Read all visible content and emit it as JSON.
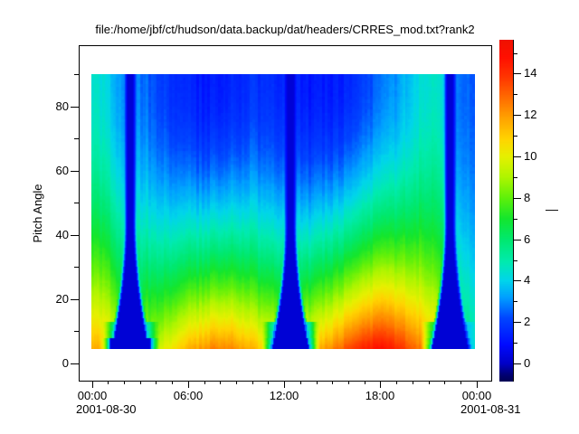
{
  "title": "file:/home/jbf/ct/hudson/data.backup/dat/headers/CRRES_mod.txt?rank2",
  "y_axis": {
    "label": "Pitch Angle",
    "major_ticks": [
      {
        "label": "0",
        "value": 0
      },
      {
        "label": "20",
        "value": 20
      },
      {
        "label": "40",
        "value": 40
      },
      {
        "label": "60",
        "value": 60
      },
      {
        "label": "80",
        "value": 80
      }
    ],
    "minor_tick_values": [
      10,
      30,
      50,
      70,
      90
    ]
  },
  "x_axis": {
    "major_ticks": [
      {
        "label": "00:00",
        "hour": 0
      },
      {
        "label": "06:00",
        "hour": 6
      },
      {
        "label": "12:00",
        "hour": 12
      },
      {
        "label": "18:00",
        "hour": 18
      },
      {
        "label": "00:00",
        "hour": 24
      }
    ],
    "minor_tick_hours": [
      1,
      2,
      3,
      4,
      5,
      7,
      8,
      9,
      10,
      11,
      13,
      14,
      15,
      16,
      17,
      19,
      20,
      21,
      22,
      23
    ],
    "date_start": "2001-08-30",
    "date_end": "2001-08-31"
  },
  "colorbar": {
    "label": "—",
    "major_ticks": [
      {
        "label": "0",
        "value": 0
      },
      {
        "label": "2",
        "value": 2
      },
      {
        "label": "4",
        "value": 4
      },
      {
        "label": "6",
        "value": 6
      },
      {
        "label": "8",
        "value": 8
      },
      {
        "label": "10",
        "value": 10
      },
      {
        "label": "12",
        "value": 12
      },
      {
        "label": "14",
        "value": 14
      }
    ],
    "minor_tick_values": [
      1,
      3,
      5,
      7,
      9,
      11,
      13,
      15
    ]
  },
  "chart_data": {
    "type": "heatmap",
    "title": "file:/home/jbf/ct/hudson/data.backup/dat/headers/CRRES_mod.txt?rank2",
    "x": {
      "start": "2001-08-30 00:00",
      "end": "2001-08-31 00:00",
      "hours_range": [
        0,
        24
      ],
      "tick_labels": [
        "00:00",
        "06:00",
        "12:00",
        "18:00",
        "00:00"
      ]
    },
    "y": {
      "label": "Pitch Angle",
      "data_range_deg": [
        4.5,
        90
      ],
      "axis_range_deg": [
        -5.5,
        104
      ]
    },
    "z": {
      "tick_values": [
        0,
        2,
        4,
        6,
        8,
        10,
        12,
        14
      ],
      "colorbar_range": [
        -0.9,
        15.6
      ],
      "colormap": "rainbow-jet"
    },
    "grid": false,
    "dropout_funnels": {
      "center_hours": [
        2.4,
        12.4,
        22.35
      ],
      "half_width_top_hours": 0.29,
      "half_width_bottom_hours": [
        1.35,
        1.15,
        1.15
      ],
      "trumpet_start_pitch_deg": 45,
      "inside_value": 0.22
    },
    "bottom_intensity_profile": [
      [
        0,
        11.8
      ],
      [
        1,
        11.0
      ],
      [
        1.9,
        9.4
      ],
      [
        3,
        9.2
      ],
      [
        4.5,
        9.8
      ],
      [
        5.5,
        10.8
      ],
      [
        6.5,
        11.7
      ],
      [
        7.5,
        12.2
      ],
      [
        8.5,
        12.2
      ],
      [
        9.5,
        11.8
      ],
      [
        10.5,
        11.0
      ],
      [
        11.5,
        10.5
      ],
      [
        12.4,
        10.4
      ],
      [
        13.3,
        10.8
      ],
      [
        14,
        11.2
      ],
      [
        15,
        12.2
      ],
      [
        16,
        13.4
      ],
      [
        17,
        14.2
      ],
      [
        18,
        14.6
      ],
      [
        19,
        14.2
      ],
      [
        20,
        13.2
      ],
      [
        21,
        11.8
      ],
      [
        21.9,
        10.2
      ],
      [
        22.7,
        7.2
      ],
      [
        23.3,
        6.0
      ],
      [
        24,
        5.4
      ]
    ],
    "top_intensity_profile": [
      [
        0,
        4.7
      ],
      [
        0.8,
        4.1
      ],
      [
        1.6,
        3.3
      ],
      [
        2.4,
        3.0
      ],
      [
        3,
        2.8
      ],
      [
        4,
        2.2
      ],
      [
        5,
        1.7
      ],
      [
        6,
        1.4
      ],
      [
        7,
        1.2
      ],
      [
        8,
        1.2
      ],
      [
        9,
        1.5
      ],
      [
        10,
        1.8
      ],
      [
        11,
        1.7
      ],
      [
        12,
        1.4
      ],
      [
        13,
        1.3
      ],
      [
        14,
        1.1
      ],
      [
        15,
        1.2
      ],
      [
        16,
        1.5
      ],
      [
        17,
        2.0
      ],
      [
        18,
        2.5
      ],
      [
        19,
        3.2
      ],
      [
        20,
        4.0
      ],
      [
        21,
        4.5
      ],
      [
        21.7,
        4.3
      ],
      [
        22.6,
        3.0
      ],
      [
        23.2,
        2.6
      ],
      [
        24,
        2.4
      ]
    ],
    "pitch_falloff_exponent": 2.0,
    "colormap_stops": [
      [
        -1.0,
        0,
        0,
        70
      ],
      [
        -0.55,
        0,
        0,
        115
      ],
      [
        0,
        0,
        0,
        200
      ],
      [
        0.9,
        0,
        10,
        255
      ],
      [
        2.2,
        0,
        70,
        255
      ],
      [
        3.2,
        0,
        160,
        255
      ],
      [
        4.0,
        0,
        213,
        235
      ],
      [
        4.9,
        0,
        235,
        175
      ],
      [
        6.0,
        0,
        232,
        110
      ],
      [
        7.0,
        20,
        230,
        45
      ],
      [
        8.0,
        95,
        240,
        10
      ],
      [
        9.0,
        175,
        245,
        0
      ],
      [
        10.0,
        230,
        240,
        0
      ],
      [
        10.8,
        255,
        213,
        0
      ],
      [
        11.8,
        255,
        165,
        0
      ],
      [
        12.8,
        255,
        110,
        0
      ],
      [
        13.8,
        255,
        55,
        0
      ],
      [
        14.8,
        255,
        15,
        0
      ],
      [
        15.7,
        238,
        18,
        0
      ]
    ]
  }
}
